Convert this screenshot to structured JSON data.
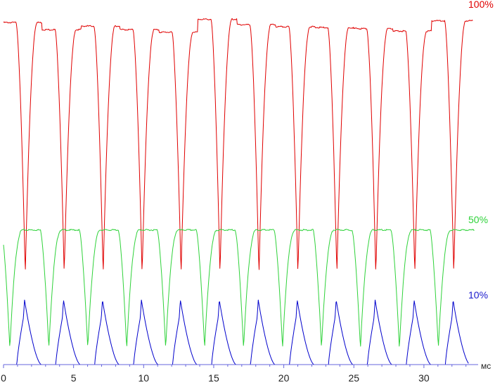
{
  "chart_data": {
    "type": "line",
    "title": "",
    "xlabel": "мс",
    "ylabel": "",
    "xlim": [
      0,
      35
    ],
    "x_ticks": [
      0,
      5,
      10,
      15,
      20,
      25,
      30
    ],
    "x_tick_labels": [
      "0",
      "5",
      "10",
      "15",
      "20",
      "25",
      "30"
    ],
    "grid": false,
    "legend": "right-labels",
    "cycle_period_ms": 2.78,
    "series": [
      {
        "name": "100%",
        "color": "#e00000",
        "pulse_minima_ms": [
          1.55,
          4.33,
          7.11,
          9.89,
          12.67,
          15.45,
          18.23,
          21.01,
          23.79,
          26.57,
          29.35,
          32.13
        ],
        "plateau_levels": [
          0.953,
          0.933,
          0.943,
          0.933,
          0.926,
          0.962,
          0.947,
          0.941,
          0.939,
          0.936,
          0.929,
          0.958
        ]
      },
      {
        "name": "50%",
        "color": "#2fd23a",
        "pulse_minima_ms": [
          0.45,
          3.23,
          6.01,
          8.79,
          11.57,
          14.35,
          17.13,
          19.91,
          22.69,
          25.47,
          28.25,
          31.03
        ],
        "plateau_level": 0.375
      },
      {
        "name": "10%",
        "color": "#0000cc",
        "pulse_peaks_ms": [
          1.5,
          4.28,
          7.06,
          9.84,
          12.62,
          15.4,
          18.18,
          20.96,
          23.74,
          26.52,
          29.3,
          32.08
        ],
        "peak_level": 0.18,
        "baseline": 0
      }
    ]
  }
}
